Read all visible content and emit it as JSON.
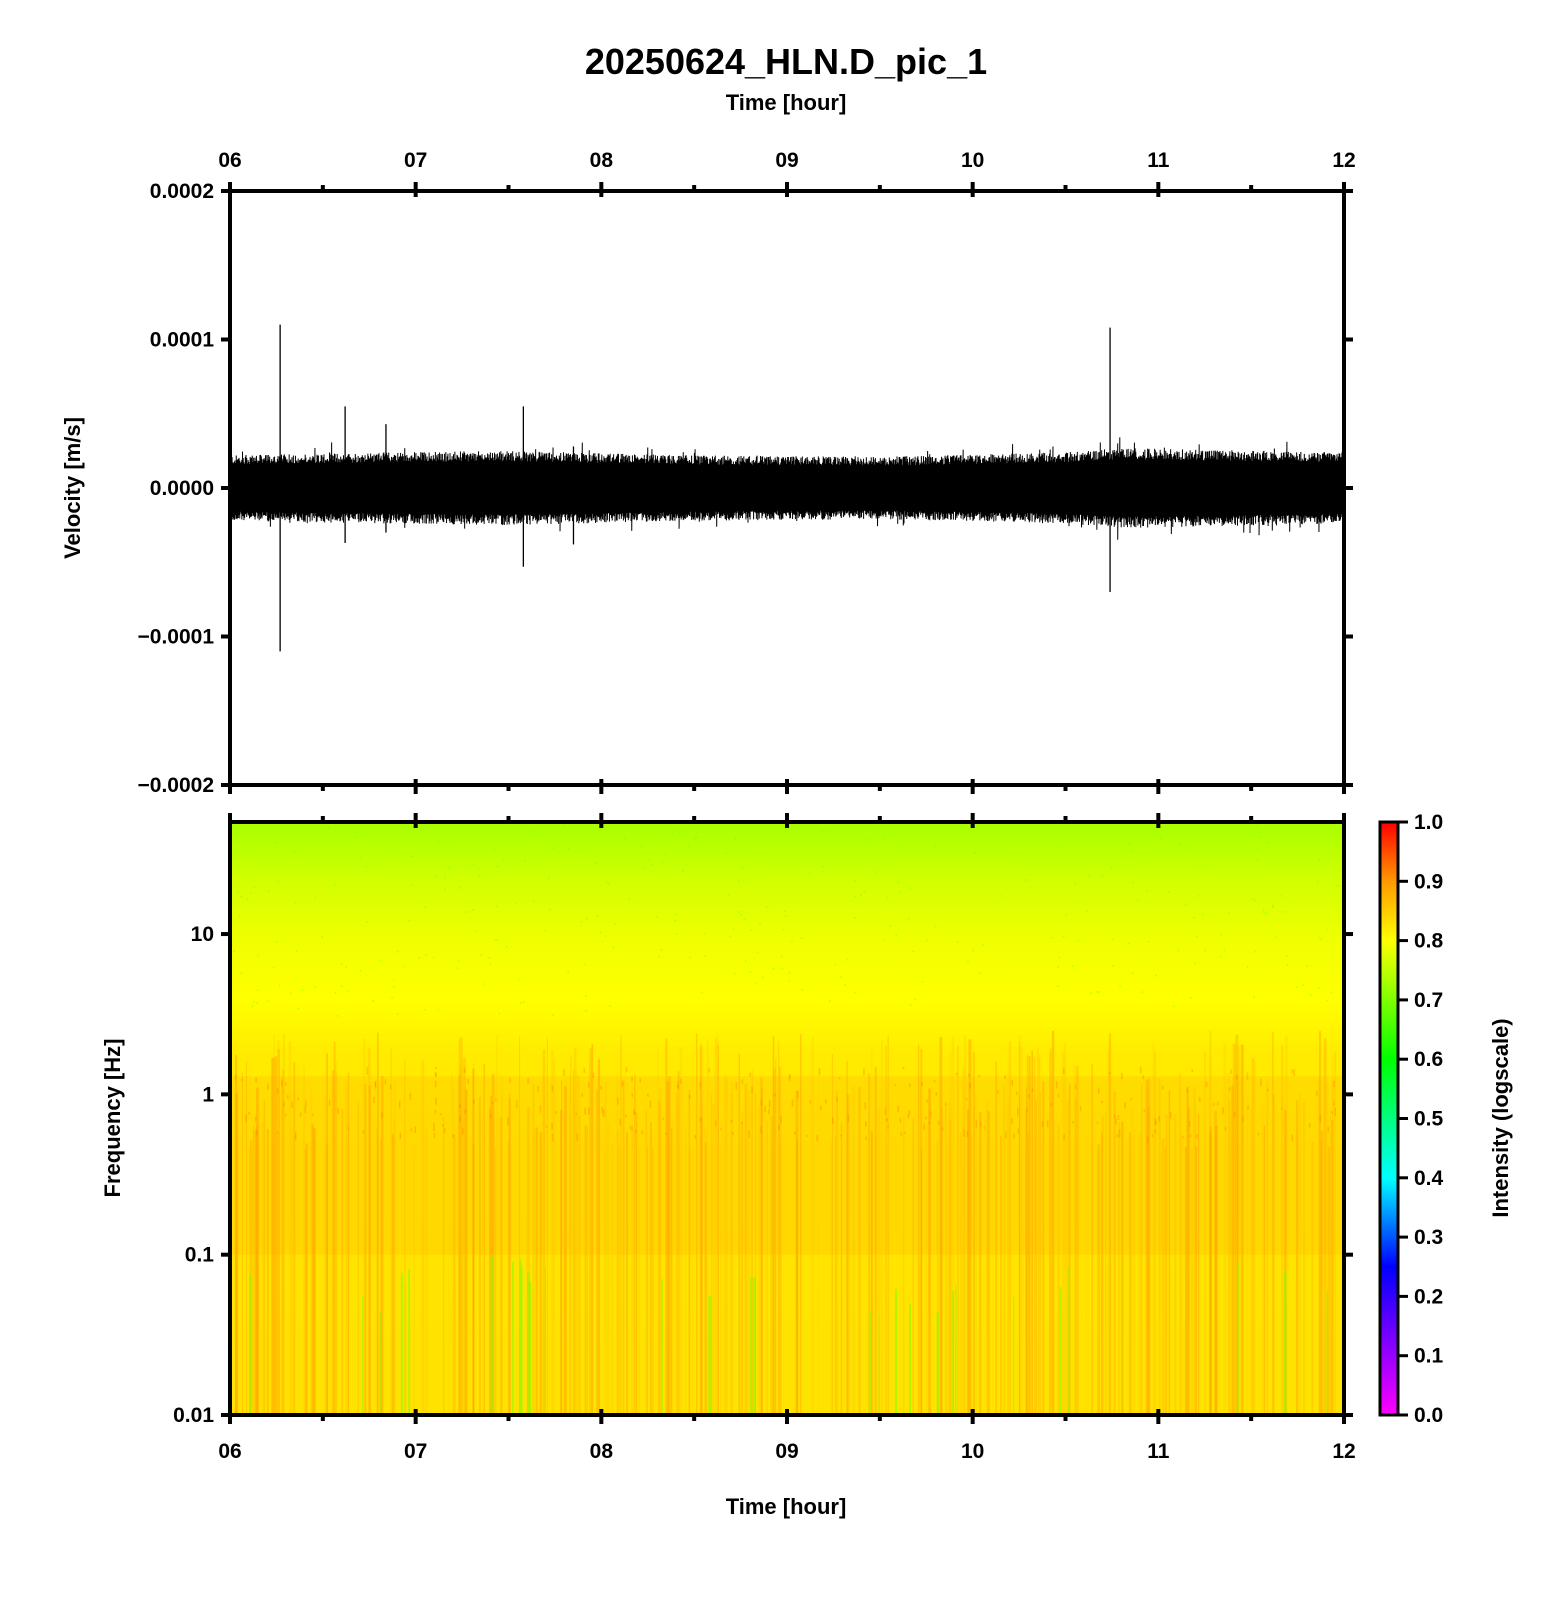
{
  "chart_data": [
    {
      "type": "line",
      "title": "20250624_HLN.D_pic_1",
      "top_xlabel": "Time [hour]",
      "ylabel": "Velocity [m/s]",
      "xlim": [
        6,
        12
      ],
      "ylim": [
        -0.0002,
        0.0002
      ],
      "x_tick_labels": [
        "06",
        "07",
        "08",
        "09",
        "10",
        "11",
        "12"
      ],
      "y_ticks": [
        0.0002,
        0.0001,
        0.0,
        -0.0001,
        -0.0002
      ],
      "y_tick_labels": [
        "0.0002",
        "0.0001",
        "0.0000",
        "−0.0001",
        "−0.0002"
      ],
      "noise_envelope": [
        {
          "x": 6.0,
          "amp": 2.2e-05
        },
        {
          "x": 6.8,
          "amp": 2.4e-05
        },
        {
          "x": 7.5,
          "amp": 2.5e-05
        },
        {
          "x": 8.5,
          "amp": 2.2e-05
        },
        {
          "x": 9.5,
          "amp": 2.1e-05
        },
        {
          "x": 10.5,
          "amp": 2.4e-05
        },
        {
          "x": 10.8,
          "amp": 2.7e-05
        },
        {
          "x": 12.0,
          "amp": 2.4e-05
        }
      ],
      "spikes": [
        {
          "x": 6.27,
          "max": 0.00011,
          "min": -0.00011
        },
        {
          "x": 6.62,
          "max": 5.5e-05,
          "min": -3.7e-05
        },
        {
          "x": 6.84,
          "max": 4.3e-05,
          "min": -3e-05
        },
        {
          "x": 7.58,
          "max": 5.5e-05,
          "min": -5.3e-05
        },
        {
          "x": 7.85,
          "max": 2.8e-05,
          "min": -3.8e-05
        },
        {
          "x": 10.74,
          "max": 0.000108,
          "min": -7e-05
        }
      ]
    },
    {
      "type": "heatmap",
      "xlabel": "Time [hour]",
      "ylabel": "Frequency [Hz]",
      "xlim": [
        6,
        12
      ],
      "ylim": [
        0.01,
        50
      ],
      "y_scale": "log",
      "x_tick_labels": [
        "06",
        "07",
        "08",
        "09",
        "10",
        "11",
        "12"
      ],
      "y_ticks": [
        10,
        1,
        0.1,
        0.01
      ],
      "y_tick_labels": [
        "10",
        "1",
        "0.1",
        "0.01"
      ],
      "intensity_profile": [
        {
          "freq": 0.01,
          "level": 0.86
        },
        {
          "freq": 0.1,
          "level": 0.85
        },
        {
          "freq": 0.2,
          "level": 0.87
        },
        {
          "freq": 0.4,
          "level": 0.86
        },
        {
          "freq": 0.6,
          "level": 0.87
        },
        {
          "freq": 1.0,
          "level": 0.87
        },
        {
          "freq": 1.3,
          "level": 0.88
        },
        {
          "freq": 2.0,
          "level": 0.83
        },
        {
          "freq": 5.0,
          "level": 0.8
        },
        {
          "freq": 10.0,
          "level": 0.78
        },
        {
          "freq": 20.0,
          "level": 0.75
        },
        {
          "freq": 50.0,
          "level": 0.7
        }
      ],
      "colorbar": {
        "label": "Intensity (logscale)",
        "range": [
          0.0,
          1.0
        ],
        "tick_labels": [
          "1.0",
          "0.9",
          "0.8",
          "0.7",
          "0.6",
          "0.5",
          "0.4",
          "0.3",
          "0.2",
          "0.1",
          "0.0"
        ]
      }
    }
  ]
}
